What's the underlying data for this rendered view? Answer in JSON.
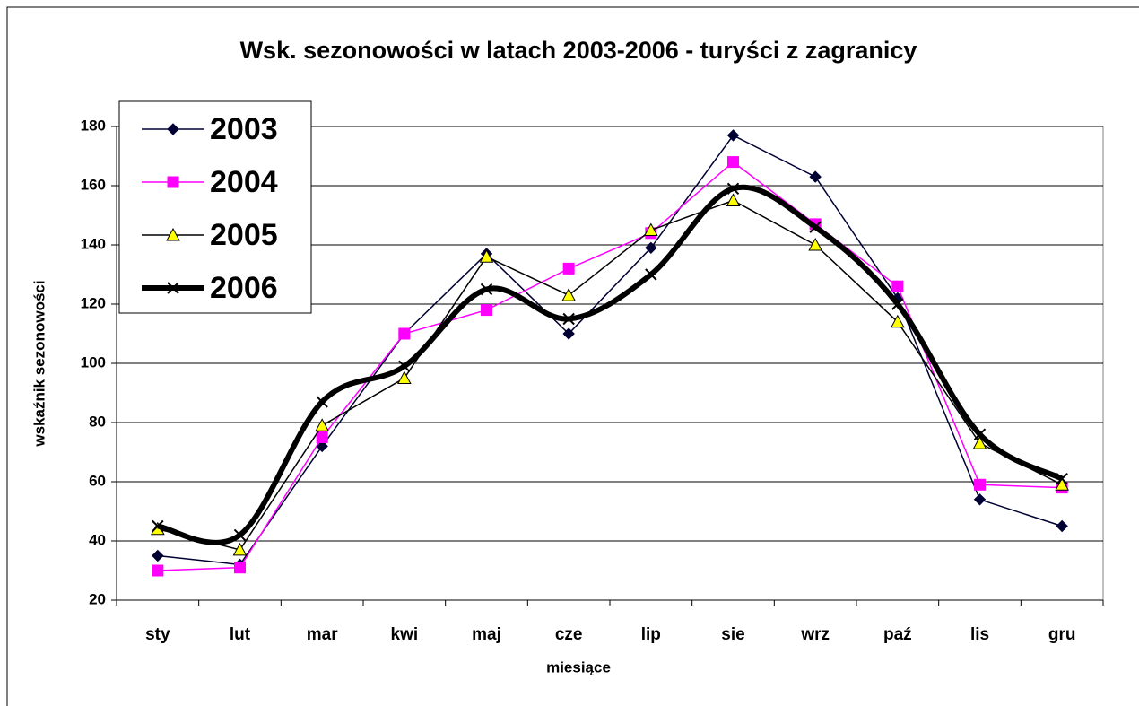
{
  "chart_data": {
    "type": "line",
    "title": "Wsk. sezonowości w latach 2003-2006 - turyści z zagranicy",
    "x_label": "miesiące",
    "y_label": "wskaźnik sezonowości",
    "categories": [
      "sty",
      "lut",
      "mar",
      "kwi",
      "maj",
      "cze",
      "lip",
      "sie",
      "wrz",
      "paź",
      "lis",
      "gru"
    ],
    "series": [
      {
        "name": "2003",
        "color": "#000033",
        "marker": "diamond",
        "values": [
          35,
          32,
          72,
          110,
          137,
          110,
          139,
          177,
          163,
          122,
          54,
          45
        ]
      },
      {
        "name": "2004",
        "color": "#ff00ff",
        "marker": "square",
        "values": [
          30,
          31,
          75,
          110,
          118,
          132,
          144,
          168,
          147,
          126,
          59,
          58
        ]
      },
      {
        "name": "2005",
        "color": "#000000",
        "marker": "triangle",
        "values": [
          44,
          37,
          79,
          95,
          136,
          123,
          145,
          155,
          140,
          114,
          73,
          59
        ]
      },
      {
        "name": "2006",
        "color": "#000000",
        "marker": "cross",
        "smooth": true,
        "values": [
          45,
          42,
          87,
          99,
          125,
          115,
          130,
          159,
          146,
          120,
          76,
          61
        ]
      }
    ],
    "ylim": [
      20,
      180
    ],
    "yticks": [
      20,
      40,
      60,
      80,
      100,
      120,
      140,
      160,
      180
    ],
    "grid": true,
    "legend": "upper left"
  }
}
